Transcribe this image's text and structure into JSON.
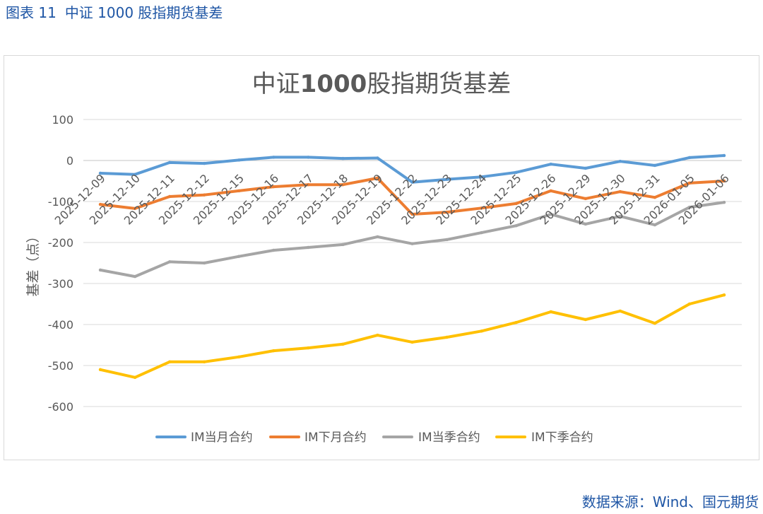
{
  "header": {
    "figure_number": "图表 11",
    "figure_title": "中证 1000 股指期货基差"
  },
  "chart_data": {
    "type": "line",
    "title": "中证1000股指期货基差",
    "xlabel": "",
    "ylabel": "基差（点）",
    "ylim": [
      -600,
      100
    ],
    "yticks": [
      100,
      0,
      -100,
      -200,
      -300,
      -400,
      -500,
      -600
    ],
    "grid": true,
    "legend_position": "bottom",
    "categories": [
      "2025-12-09",
      "2025-12-10",
      "2025-12-11",
      "2025-12-12",
      "2025-12-15",
      "2025-12-16",
      "2025-12-17",
      "2025-12-18",
      "2025-12-19",
      "2025-12-22",
      "2025-12-23",
      "2025-12-24",
      "2025-12-25",
      "2025-12-26",
      "2025-12-29",
      "2025-12-30",
      "2025-12-31",
      "2026-01-05",
      "2026-01-06"
    ],
    "series": [
      {
        "name": "IM当月合约",
        "color": "#5B9BD5",
        "values": [
          -31,
          -34,
          -5,
          -7,
          1,
          8,
          8,
          5,
          6,
          -53,
          -46,
          -40,
          -29,
          -9,
          -19,
          -2,
          -12,
          7,
          12
        ]
      },
      {
        "name": "IM下月合约",
        "color": "#ED7D31",
        "values": [
          -107,
          -117,
          -88,
          -84,
          -74,
          -64,
          -59,
          -59,
          -43,
          -131,
          -126,
          -116,
          -105,
          -74,
          -93,
          -76,
          -90,
          -55,
          -50
        ]
      },
      {
        "name": "IM当季合约",
        "color": "#A5A5A5",
        "values": [
          -267,
          -283,
          -247,
          -250,
          -234,
          -219,
          -212,
          -205,
          -186,
          -203,
          -193,
          -176,
          -159,
          -131,
          -155,
          -136,
          -157,
          -114,
          -102
        ]
      },
      {
        "name": "IM下季合约",
        "color": "#FFC000",
        "values": [
          -510,
          -529,
          -491,
          -491,
          -479,
          -464,
          -457,
          -448,
          -426,
          -443,
          -431,
          -416,
          -395,
          -369,
          -388,
          -367,
          -397,
          -350,
          -328
        ]
      }
    ]
  },
  "footer": {
    "source": "数据来源：Wind、国元期货"
  }
}
